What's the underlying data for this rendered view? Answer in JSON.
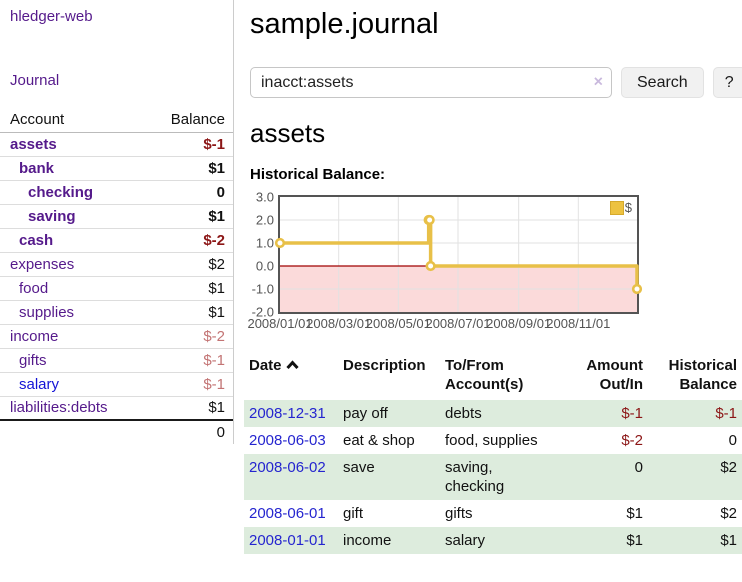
{
  "app": {
    "brand": "hledger-web",
    "nav": {
      "journal": "Journal"
    }
  },
  "sidebar": {
    "headers": {
      "account": "Account",
      "balance": "Balance"
    },
    "accounts": [
      {
        "name": "assets",
        "depth": 0,
        "balance": "$-1",
        "bold": true,
        "balance_color": "#8c1616"
      },
      {
        "name": "bank",
        "depth": 1,
        "balance": "$1",
        "bold": true
      },
      {
        "name": "checking",
        "depth": 2,
        "balance": "0",
        "bold": true
      },
      {
        "name": "saving",
        "depth": 2,
        "balance": "$1",
        "bold": true
      },
      {
        "name": "cash",
        "depth": 1,
        "balance": "$-2",
        "bold": true,
        "balance_color": "#8c1616"
      },
      {
        "name": "expenses",
        "depth": 0,
        "balance": "$2",
        "bold": false
      },
      {
        "name": "food",
        "depth": 1,
        "balance": "$1",
        "bold": false
      },
      {
        "name": "supplies",
        "depth": 1,
        "balance": "$1",
        "bold": false
      },
      {
        "name": "income",
        "depth": 0,
        "balance": "$-2",
        "bold": false,
        "balance_color": "#c37474"
      },
      {
        "name": "gifts",
        "depth": 1,
        "balance": "$-1",
        "bold": false,
        "balance_color": "#c37474"
      },
      {
        "name": "salary",
        "depth": 1,
        "balance": "$-1",
        "bold": false,
        "balance_color": "#c37474",
        "link_color": "#1414d6"
      },
      {
        "name": "liabilities:debts",
        "depth": 0,
        "balance": "$1",
        "bold": false
      }
    ],
    "total": "0"
  },
  "header": {
    "title": "sample.journal"
  },
  "search": {
    "value": "inacct:assets",
    "clear_icon": "×",
    "button_label": "Search",
    "help_label": "?"
  },
  "account_page": {
    "heading": "assets"
  },
  "chart_data": {
    "type": "line",
    "title": "Historical Balance:",
    "step": true,
    "x": [
      "2008-01-01",
      "2008-06-01",
      "2008-06-02",
      "2008-06-03",
      "2008-12-31"
    ],
    "values": [
      1,
      2,
      2,
      0,
      -1
    ],
    "series_name": "$",
    "series_color": "#e8c048",
    "marker_fill": "#ffffff",
    "xrange": [
      "2008-01-01",
      "2008-12-31"
    ],
    "ylim": [
      -2,
      3
    ],
    "yticks": [
      "3.0",
      "2.0",
      "1.0",
      "0.0",
      "-1.0",
      "-2.0"
    ],
    "xticks": [
      "2008/01/01",
      "2008/03/01",
      "2008/05/01",
      "2008/07/01",
      "2008/09/01",
      "2008/11/01"
    ],
    "grid": true,
    "grid_color": "#e2e2e2",
    "zero_line_color": "#a00000",
    "negative_region_color": "#fbdada",
    "legend_position": "top-right",
    "legend": [
      {
        "label": "$",
        "color": "#edc240"
      }
    ]
  },
  "register": {
    "headers": {
      "date": "Date",
      "description": "Description",
      "accounts": "To/From\nAccount(s)",
      "amount": "Amount\nOut/In",
      "balance": "Historical\nBalance"
    },
    "rows": [
      {
        "date": "2008-12-31",
        "description": "pay off",
        "accounts": "debts",
        "amount": "$-1",
        "balance": "$-1",
        "amount_color": "#8c1616",
        "balance_color": "#8c1616",
        "shaded": true
      },
      {
        "date": "2008-06-03",
        "description": "eat & shop",
        "accounts": "food, supplies",
        "amount": "$-2",
        "balance": "0",
        "amount_color": "#8c1616",
        "shaded": false
      },
      {
        "date": "2008-06-02",
        "description": "save",
        "accounts": "saving, checking",
        "amount": "0",
        "balance": "$2",
        "shaded": true
      },
      {
        "date": "2008-06-01",
        "description": "gift",
        "accounts": "gifts",
        "amount": "$1",
        "balance": "$2",
        "shaded": false
      },
      {
        "date": "2008-01-01",
        "description": "income",
        "accounts": "salary",
        "amount": "$1",
        "balance": "$1",
        "shaded": true
      }
    ]
  },
  "colors": {
    "link_purple": "#551a8b",
    "link_blue": "#1414d6",
    "date_link_blue": "#2525cf",
    "negative_strong": "#8c1616",
    "negative_muted": "#c37474",
    "row_stripe_green": "#ddecdd",
    "chart_yellow": "#e8c048",
    "chart_border": "#545454"
  }
}
